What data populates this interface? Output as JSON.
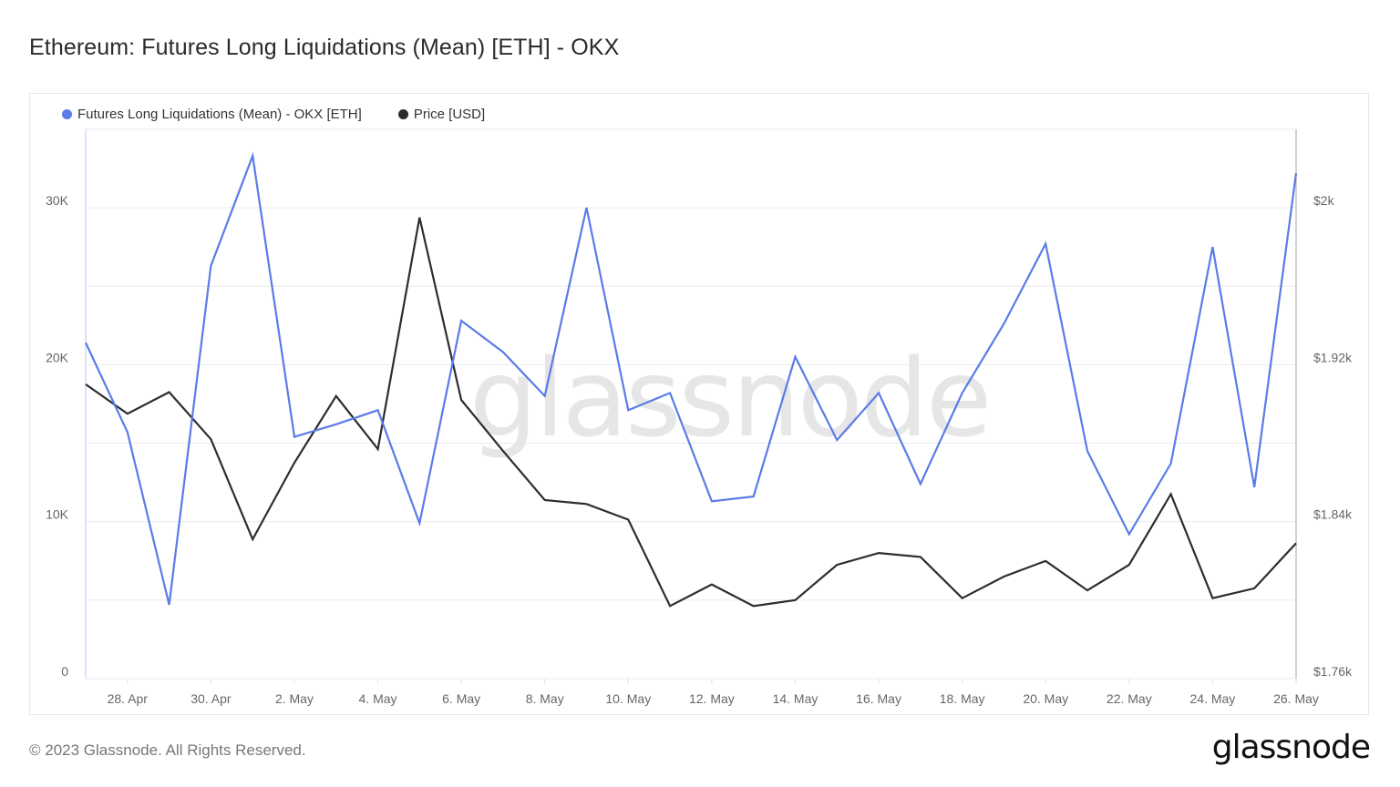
{
  "page": {
    "title": "Ethereum: Futures Long Liquidations (Mean) [ETH] - OKX",
    "footer": "© 2023 Glassnode. All Rights Reserved.",
    "brand": "glassnode",
    "watermark": "glassnode"
  },
  "legend": [
    {
      "label": "Futures Long Liquidations (Mean) - OKX [ETH]",
      "color": "#5b7be8"
    },
    {
      "label": "Price [USD]",
      "color": "#2d2d2d"
    }
  ],
  "colors": {
    "liquidations": "#5b7be8",
    "price": "#2d2d2d",
    "grid": "#ebebeb",
    "axis_text": "#666666"
  },
  "chart_data": {
    "type": "line",
    "title": "Ethereum: Futures Long Liquidations (Mean) [ETH] - OKX",
    "xlabel": "",
    "ylabel_left": "Futures Long Liquidations (Mean) [ETH]",
    "ylabel_right": "Price [USD]",
    "x": [
      "27 Apr",
      "28 Apr",
      "29 Apr",
      "30 Apr",
      "1 May",
      "2 May",
      "3 May",
      "4 May",
      "5 May",
      "6 May",
      "7 May",
      "8 May",
      "9 May",
      "10 May",
      "11 May",
      "12 May",
      "13 May",
      "14 May",
      "15 May",
      "16 May",
      "17 May",
      "18 May",
      "19 May",
      "20 May",
      "21 May",
      "22 May",
      "23 May",
      "24 May",
      "25 May",
      "26 May"
    ],
    "x_tick_labels": [
      "28. Apr",
      "30. Apr",
      "2. May",
      "4. May",
      "6. May",
      "8. May",
      "10. May",
      "12. May",
      "14. May",
      "16. May",
      "18. May",
      "20. May",
      "22. May",
      "24. May",
      "26. May"
    ],
    "y_left_ticks": [
      "0",
      "10K",
      "20K",
      "30K"
    ],
    "y_right_ticks": [
      "$1.76k",
      "$1.84k",
      "$1.92k",
      "$2k"
    ],
    "ylim_left": [
      0,
      34800
    ],
    "ylim_right": [
      1760,
      2021
    ],
    "grid": true,
    "legend_position": "top-left",
    "series": [
      {
        "name": "Futures Long Liquidations (Mean) - OKX [ETH]",
        "axis": "left",
        "color": "#5b7be8",
        "values": [
          21400,
          15700,
          4700,
          26300,
          33300,
          15400,
          16200,
          17100,
          9900,
          22800,
          20800,
          18000,
          30000,
          17100,
          18200,
          11300,
          11600,
          20500,
          15200,
          18200,
          12400,
          18200,
          22600,
          27700,
          14500,
          9200,
          13700,
          27500,
          12200,
          32200
        ]
      },
      {
        "name": "Price [USD]",
        "axis": "right",
        "color": "#2d2d2d",
        "values": [
          1910,
          1895,
          1906,
          1882,
          1831,
          1870,
          1904,
          1877,
          1995,
          1902,
          1876,
          1851,
          1849,
          1841,
          1797,
          1808,
          1797,
          1800,
          1818,
          1824,
          1822,
          1801,
          1812,
          1820,
          1805,
          1818,
          1854,
          1801,
          1806,
          1829
        ]
      }
    ]
  }
}
